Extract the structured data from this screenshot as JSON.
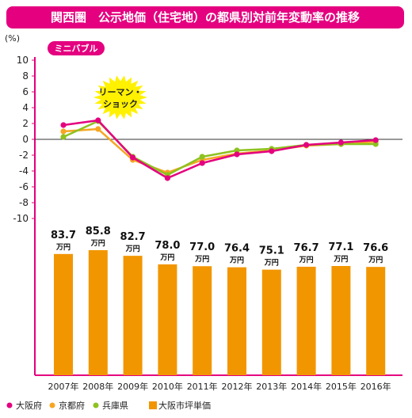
{
  "page_title": "関西圏　公示地価（住宅地）の都県別対前年変動率の推移",
  "colors": {
    "brand": "#e4007f",
    "osaka_pref": "#e4007f",
    "kyoto": "#f6a623",
    "hyogo": "#8dc21f",
    "bar": "#f29600"
  },
  "chart_data": {
    "type": "line",
    "title": "関西圏　公示地価（住宅地）の都県別対前年変動率の推移",
    "ylabel": "(%)",
    "ylim": [
      -10,
      10
    ],
    "y_ticks": [
      "10",
      "8",
      "6",
      "4",
      "2",
      "0",
      "-2",
      "-4",
      "-6",
      "-8",
      "-10"
    ],
    "x": [
      "2007年",
      "2008年",
      "2009年",
      "2010年",
      "2011年",
      "2012年",
      "2013年",
      "2014年",
      "2015年",
      "2016年"
    ],
    "series": [
      {
        "name": "大阪府",
        "values": [
          1.8,
          2.4,
          -2.3,
          -4.9,
          -3.0,
          -1.9,
          -1.5,
          -0.7,
          -0.4,
          -0.1
        ]
      },
      {
        "name": "京都府",
        "values": [
          1.0,
          1.3,
          -2.6,
          -4.2,
          -2.6,
          -1.8,
          -1.4,
          -0.8,
          -0.6,
          -0.3
        ]
      },
      {
        "name": "兵庫県",
        "values": [
          0.3,
          2.3,
          -2.2,
          -4.5,
          -2.2,
          -1.4,
          -1.2,
          -0.7,
          -0.6,
          -0.6
        ]
      }
    ],
    "bars": {
      "name": "大阪市坪単価",
      "unit": "万円",
      "values": [
        "83.7",
        "85.8",
        "82.7",
        "78.0",
        "77.0",
        "76.4",
        "75.1",
        "76.7",
        "77.1",
        "76.6"
      ]
    },
    "annotations": {
      "mini_bubble": "ミニバブル",
      "lehman_line1": "リーマン・",
      "lehman_line2": "ショック"
    },
    "legend": [
      "大阪府",
      "京都府",
      "兵庫県",
      "大阪市坪単価"
    ],
    "grid": false,
    "legend_position": "bottom"
  }
}
